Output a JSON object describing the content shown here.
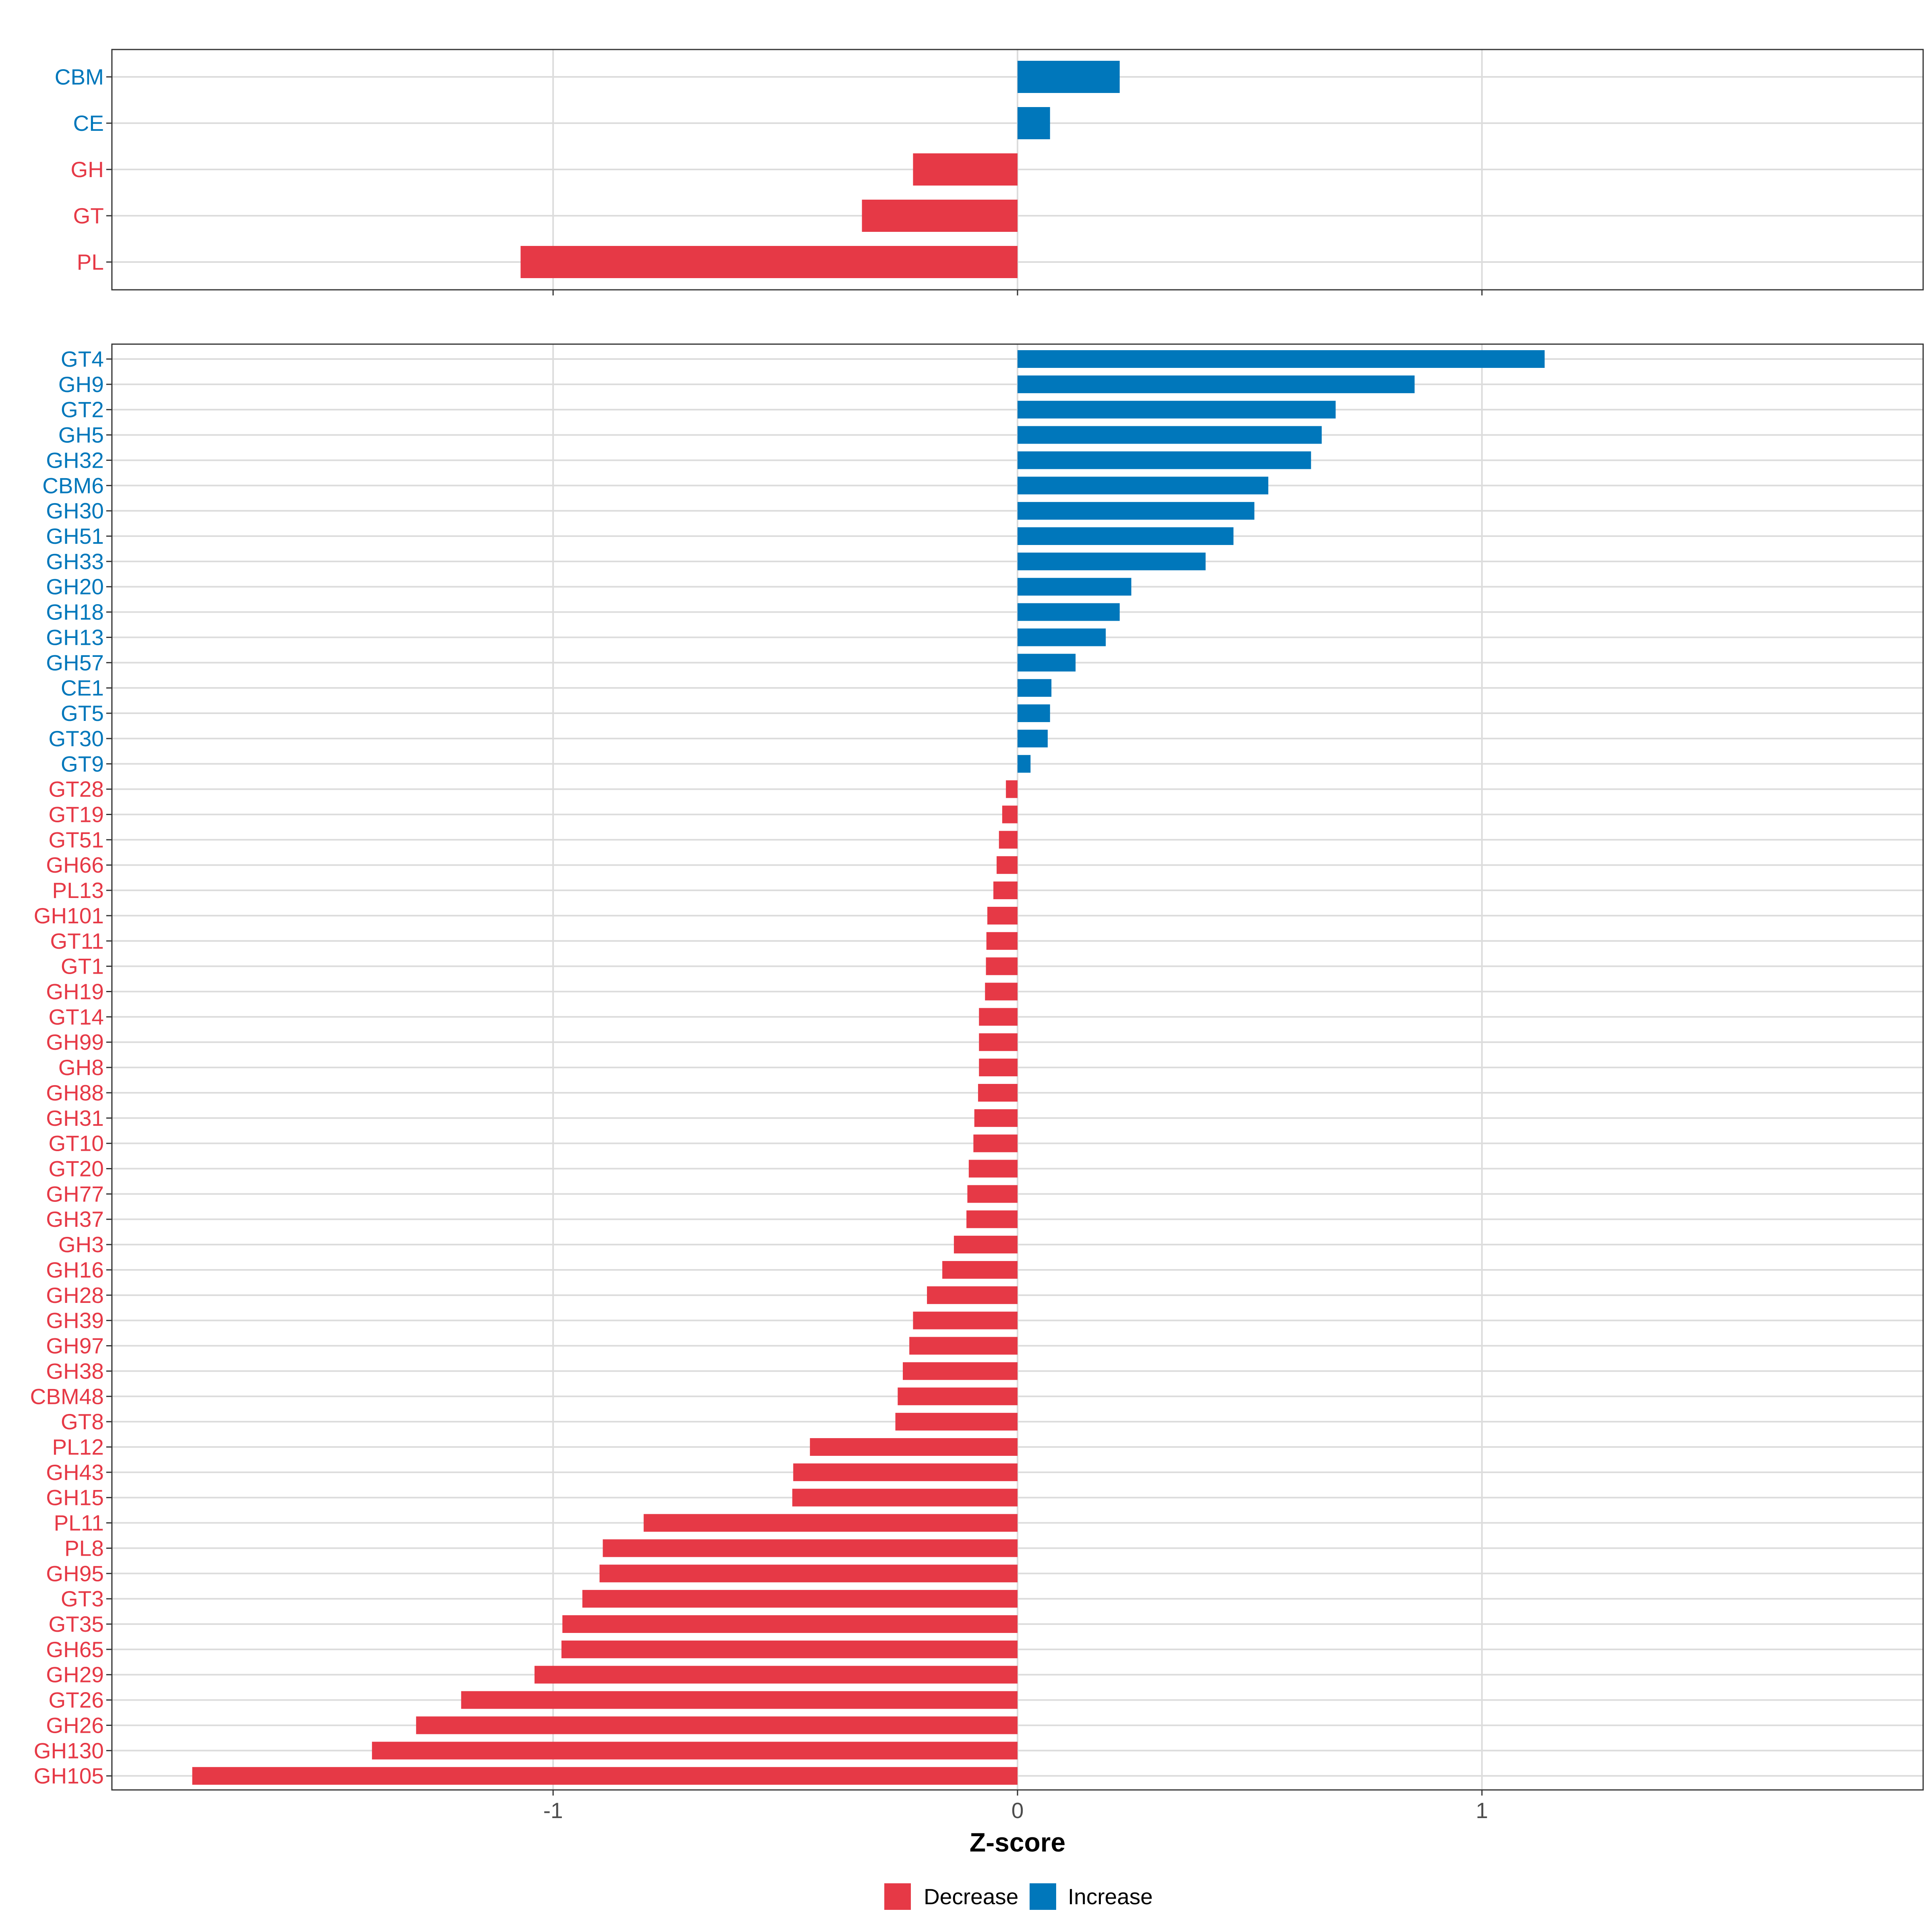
{
  "chart_data": [
    {
      "type": "bar",
      "orientation": "horizontal",
      "panel": "top",
      "title": "",
      "xlabel": "",
      "ylabel": "",
      "xlim": [
        -1.95,
        1.95
      ],
      "xticks": [
        -1,
        0,
        1
      ],
      "grid": true,
      "categories": [
        "CBM",
        "CE",
        "GH",
        "GT",
        "PL"
      ],
      "values": [
        0.22,
        0.07,
        -0.225,
        -0.335,
        -1.07
      ],
      "groups": [
        "Increase",
        "Increase",
        "Decrease",
        "Decrease",
        "Decrease"
      ]
    },
    {
      "type": "bar",
      "orientation": "horizontal",
      "panel": "bottom",
      "title": "",
      "xlabel": "Z-score",
      "ylabel": "",
      "xlim": [
        -1.95,
        1.95
      ],
      "xticks": [
        -1,
        0,
        1
      ],
      "xtick_labels": [
        "-1",
        "0",
        "1"
      ],
      "grid": true,
      "categories": [
        "GT4",
        "GH9",
        "GT2",
        "GH5",
        "GH32",
        "CBM6",
        "GH30",
        "GH51",
        "GH33",
        "GH20",
        "GH18",
        "GH13",
        "GH57",
        "CE1",
        "GT5",
        "GT30",
        "GT9",
        "GT28",
        "GT19",
        "GT51",
        "GH66",
        "PL13",
        "GH101",
        "GT11",
        "GT1",
        "GH19",
        "GT14",
        "GH99",
        "GH8",
        "GH88",
        "GH31",
        "GT10",
        "GT20",
        "GH77",
        "GH37",
        "GH3",
        "GH16",
        "GH28",
        "GH39",
        "GH97",
        "GH38",
        "CBM48",
        "GT8",
        "PL12",
        "GH43",
        "GH15",
        "PL11",
        "PL8",
        "GH95",
        "GT3",
        "GT35",
        "GH65",
        "GH29",
        "GT26",
        "GH26",
        "GH130",
        "GH105"
      ],
      "values": [
        1.135,
        0.855,
        0.685,
        0.655,
        0.632,
        0.54,
        0.51,
        0.465,
        0.405,
        0.245,
        0.22,
        0.19,
        0.125,
        0.073,
        0.07,
        0.065,
        0.028,
        -0.025,
        -0.033,
        -0.04,
        -0.045,
        -0.052,
        -0.065,
        -0.067,
        -0.068,
        -0.07,
        -0.083,
        -0.083,
        -0.083,
        -0.085,
        -0.093,
        -0.095,
        -0.105,
        -0.108,
        -0.11,
        -0.137,
        -0.162,
        -0.195,
        -0.225,
        -0.233,
        -0.247,
        -0.258,
        -0.263,
        -0.447,
        -0.483,
        -0.485,
        -0.805,
        -0.893,
        -0.9,
        -0.937,
        -0.98,
        -0.982,
        -1.04,
        -1.198,
        -1.295,
        -1.39,
        -1.777
      ],
      "groups": [
        "Increase",
        "Increase",
        "Increase",
        "Increase",
        "Increase",
        "Increase",
        "Increase",
        "Increase",
        "Increase",
        "Increase",
        "Increase",
        "Increase",
        "Increase",
        "Increase",
        "Increase",
        "Increase",
        "Increase",
        "Decrease",
        "Decrease",
        "Decrease",
        "Decrease",
        "Decrease",
        "Decrease",
        "Decrease",
        "Decrease",
        "Decrease",
        "Decrease",
        "Decrease",
        "Decrease",
        "Decrease",
        "Decrease",
        "Decrease",
        "Decrease",
        "Decrease",
        "Decrease",
        "Decrease",
        "Decrease",
        "Decrease",
        "Decrease",
        "Decrease",
        "Decrease",
        "Decrease",
        "Decrease",
        "Decrease",
        "Decrease",
        "Decrease",
        "Decrease",
        "Decrease",
        "Decrease",
        "Decrease",
        "Decrease",
        "Decrease",
        "Decrease",
        "Decrease",
        "Decrease",
        "Decrease",
        "Decrease"
      ]
    }
  ],
  "legend": {
    "position": "bottom",
    "items": [
      {
        "label": "Decrease",
        "color": "#E63946"
      },
      {
        "label": "Increase",
        "color": "#0077BB"
      }
    ]
  },
  "colors": {
    "Decrease": "#E63946",
    "Increase": "#0077BB",
    "grid": "#DCDCDC",
    "axis_text": "#4D4D4D"
  }
}
